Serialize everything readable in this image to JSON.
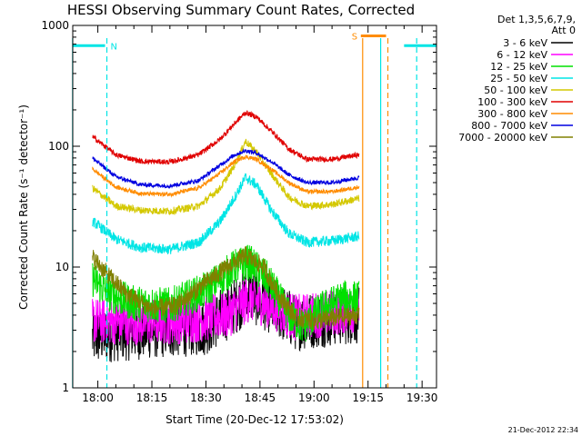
{
  "chart_data": {
    "type": "line",
    "title": "HESSI Observing Summary Count Rates, Corrected",
    "xlabel": "Start Time (20-Dec-12 17:53:02)",
    "ylabel": "Corrected Count Rate (s⁻¹ detector⁻¹)",
    "y_scale": "log",
    "ylim": [
      1,
      1000
    ],
    "xlim": [
      "17:53:02",
      "19:34:00"
    ],
    "x_ticks": [
      "18:00",
      "18:15",
      "18:30",
      "18:45",
      "19:00",
      "19:15",
      "19:30"
    ],
    "y_ticks": [
      "1",
      "10",
      "100",
      "1000"
    ],
    "legend_header": [
      "Det 1,3,5,6,7,9,",
      "Att 0"
    ],
    "legend_position": "right",
    "timestamp": "21-Dec-2012 22:34",
    "flags": {
      "N": {
        "label": "N",
        "start": "18:00",
        "end": "18:02",
        "color": "#00e5e5"
      },
      "S": {
        "label": "S",
        "start": "19:13",
        "end": "19:20",
        "color": "#ff8c00"
      }
    },
    "markers": [
      {
        "time": "17:53:00",
        "style": "solid",
        "color": "#00e5e5"
      },
      {
        "time": "18:02:30",
        "style": "dashed",
        "color": "#00e5e5"
      },
      {
        "time": "19:13:30",
        "style": "solid",
        "color": "#ff8c00"
      },
      {
        "time": "19:18:30",
        "style": "solid",
        "color": "#00e5e5"
      },
      {
        "time": "19:20:30",
        "style": "dashed",
        "color": "#ff8c00"
      },
      {
        "time": "19:28:30",
        "style": "dashed",
        "color": "#00e5e5"
      }
    ],
    "data_start": "17:58:30",
    "data_end": "19:12:30",
    "series": [
      {
        "name": "3 - 6 keV",
        "color": "#000000",
        "noise": 0.55,
        "points": [
          [
            "17:58:30",
            2.6
          ],
          [
            "18:03",
            2.8
          ],
          [
            "18:15",
            3.0
          ],
          [
            "18:30",
            3.2
          ],
          [
            "18:37",
            4.5
          ],
          [
            "18:42",
            6.0
          ],
          [
            "18:47",
            5.0
          ],
          [
            "18:55",
            3.5
          ],
          [
            "19:05",
            3.8
          ],
          [
            "19:12:30",
            4.0
          ]
        ]
      },
      {
        "name": "6 - 12 keV",
        "color": "#ff00ff",
        "noise": 0.45,
        "points": [
          [
            "17:58:30",
            3.6
          ],
          [
            "18:10",
            3.5
          ],
          [
            "18:25",
            3.6
          ],
          [
            "18:36",
            4.0
          ],
          [
            "18:42",
            5.5
          ],
          [
            "18:48",
            4.8
          ],
          [
            "18:55",
            3.8
          ],
          [
            "19:05",
            4.2
          ],
          [
            "19:12:30",
            4.5
          ]
        ]
      },
      {
        "name": "12 - 25 keV",
        "color": "#00e000",
        "noise": 0.35,
        "points": [
          [
            "17:58:30",
            8.0
          ],
          [
            "18:03",
            6.0
          ],
          [
            "18:10",
            5.0
          ],
          [
            "18:20",
            4.8
          ],
          [
            "18:30",
            6.5
          ],
          [
            "18:38",
            10.0
          ],
          [
            "18:42",
            11.0
          ],
          [
            "18:47",
            8.0
          ],
          [
            "18:53",
            4.0
          ],
          [
            "18:57",
            3.2
          ],
          [
            "19:02",
            4.5
          ],
          [
            "19:08",
            5.5
          ],
          [
            "19:12:30",
            5.5
          ]
        ]
      },
      {
        "name": "25 - 50 keV",
        "color": "#00e5e5",
        "noise": 0.1,
        "points": [
          [
            "17:58:30",
            24.0
          ],
          [
            "18:05",
            17.0
          ],
          [
            "18:12",
            14.5
          ],
          [
            "18:20",
            14.0
          ],
          [
            "18:28",
            16.0
          ],
          [
            "18:34",
            24.0
          ],
          [
            "18:38",
            38.0
          ],
          [
            "18:41",
            55.0
          ],
          [
            "18:44",
            48.0
          ],
          [
            "18:48",
            30.0
          ],
          [
            "18:53",
            19.0
          ],
          [
            "18:58",
            16.0
          ],
          [
            "19:05",
            16.5
          ],
          [
            "19:12:30",
            18.0
          ]
        ]
      },
      {
        "name": "50 - 100 keV",
        "color": "#d4c800",
        "noise": 0.07,
        "points": [
          [
            "17:58:30",
            45.0
          ],
          [
            "18:05",
            32.0
          ],
          [
            "18:12",
            29.5
          ],
          [
            "18:20",
            29.0
          ],
          [
            "18:28",
            32.0
          ],
          [
            "18:34",
            45.0
          ],
          [
            "18:38",
            70.0
          ],
          [
            "18:41",
            110.0
          ],
          [
            "18:44",
            90.0
          ],
          [
            "18:48",
            60.0
          ],
          [
            "18:53",
            38.0
          ],
          [
            "18:58",
            32.0
          ],
          [
            "19:05",
            33.0
          ],
          [
            "19:12:30",
            37.0
          ]
        ]
      },
      {
        "name": "100 - 300 keV",
        "color": "#e00000",
        "noise": 0.05,
        "points": [
          [
            "17:58:30",
            120.0
          ],
          [
            "18:05",
            85.0
          ],
          [
            "18:12",
            75.0
          ],
          [
            "18:20",
            74.0
          ],
          [
            "18:28",
            85.0
          ],
          [
            "18:34",
            115.0
          ],
          [
            "18:38",
            155.0
          ],
          [
            "18:41",
            190.0
          ],
          [
            "18:44",
            175.0
          ],
          [
            "18:48",
            135.0
          ],
          [
            "18:53",
            95.0
          ],
          [
            "18:58",
            78.0
          ],
          [
            "19:05",
            78.0
          ],
          [
            "19:12:30",
            85.0
          ]
        ]
      },
      {
        "name": "300 - 800 keV",
        "color": "#ff8c00",
        "noise": 0.04,
        "points": [
          [
            "17:58:30",
            65.0
          ],
          [
            "18:05",
            46.0
          ],
          [
            "18:12",
            40.5
          ],
          [
            "18:20",
            40.0
          ],
          [
            "18:28",
            45.0
          ],
          [
            "18:34",
            60.0
          ],
          [
            "18:38",
            75.0
          ],
          [
            "18:41",
            82.0
          ],
          [
            "18:44",
            78.0
          ],
          [
            "18:48",
            65.0
          ],
          [
            "18:53",
            50.0
          ],
          [
            "18:58",
            42.0
          ],
          [
            "19:05",
            42.0
          ],
          [
            "19:12:30",
            46.0
          ]
        ]
      },
      {
        "name": "800 - 7000 keV",
        "color": "#0000e0",
        "noise": 0.04,
        "points": [
          [
            "17:58:30",
            80.0
          ],
          [
            "18:05",
            56.0
          ],
          [
            "18:12",
            48.0
          ],
          [
            "18:20",
            47.0
          ],
          [
            "18:28",
            52.0
          ],
          [
            "18:34",
            70.0
          ],
          [
            "18:38",
            85.0
          ],
          [
            "18:41",
            92.0
          ],
          [
            "18:44",
            88.0
          ],
          [
            "18:48",
            75.0
          ],
          [
            "18:53",
            58.0
          ],
          [
            "18:58",
            50.0
          ],
          [
            "19:05",
            50.0
          ],
          [
            "19:12:30",
            55.0
          ]
        ]
      },
      {
        "name": "7000 - 20000 keV",
        "color": "#808000",
        "noise": 0.18,
        "points": [
          [
            "17:58:30",
            12.0
          ],
          [
            "18:03",
            8.5
          ],
          [
            "18:08",
            6.0
          ],
          [
            "18:15",
            4.5
          ],
          [
            "18:22",
            4.8
          ],
          [
            "18:30",
            7.5
          ],
          [
            "18:36",
            10.0
          ],
          [
            "18:41",
            12.5
          ],
          [
            "18:46",
            10.0
          ],
          [
            "18:50",
            6.0
          ],
          [
            "18:55",
            3.8
          ],
          [
            "19:00",
            3.6
          ],
          [
            "19:06",
            3.8
          ],
          [
            "19:12:30",
            4.0
          ]
        ]
      }
    ]
  }
}
